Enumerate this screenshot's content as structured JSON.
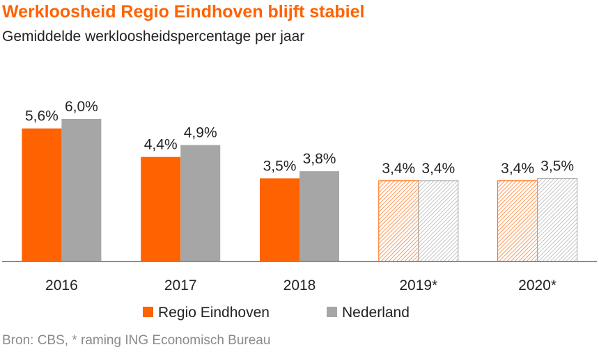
{
  "title": "Werkloosheid Regio Eindhoven blijft stabiel",
  "subtitle": "Gemiddelde werkloosheidspercentage per jaar",
  "source": "Bron: CBS, * raming ING Economisch Bureau",
  "colors": {
    "accent": "#FF6200",
    "grey": "#A6A6A6",
    "title": "#FF6200",
    "text": "#222222",
    "axis": "#8C8C8C"
  },
  "chart_data": {
    "type": "bar",
    "title": "Werkloosheid Regio Eindhoven blijft stabiel",
    "subtitle": "Gemiddelde werkloosheidspercentage per jaar",
    "xlabel": "",
    "ylabel": "",
    "ylim": [
      0,
      6.0
    ],
    "grid": false,
    "legend_position": "bottom",
    "categories": [
      "2016",
      "2017",
      "2018",
      "2019*",
      "2020*"
    ],
    "estimated": [
      false,
      false,
      false,
      true,
      true
    ],
    "series": [
      {
        "name": "Regio Eindhoven",
        "color": "#FF6200",
        "values": [
          5.6,
          4.4,
          3.5,
          3.4,
          3.4
        ],
        "labels": [
          "5,6%",
          "4,4%",
          "3,5%",
          "3,4%",
          "3,4%"
        ]
      },
      {
        "name": "Nederland",
        "color": "#A6A6A6",
        "values": [
          6.0,
          4.9,
          3.8,
          3.4,
          3.5
        ],
        "labels": [
          "6,0%",
          "4,9%",
          "3,8%",
          "3,4%",
          "3,5%"
        ]
      }
    ]
  }
}
